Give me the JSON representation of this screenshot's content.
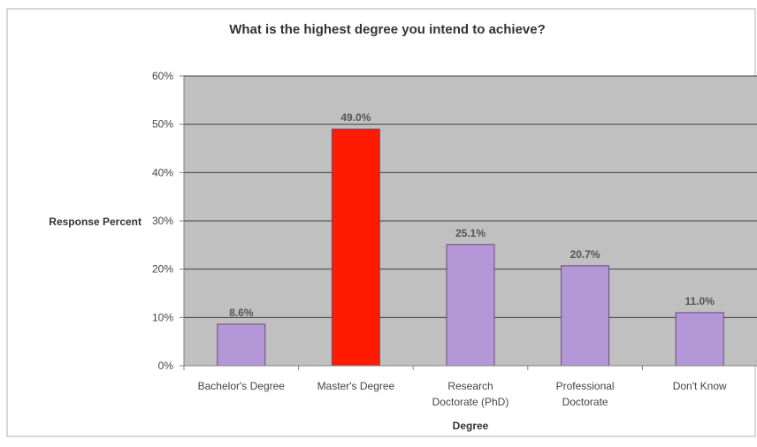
{
  "chart_data": {
    "type": "bar",
    "title": "What is the highest degree you intend to achieve?",
    "xlabel": "Degree",
    "ylabel": "Response Percent",
    "ylim": [
      0,
      60
    ],
    "yticks": [
      "0%",
      "10%",
      "20%",
      "30%",
      "40%",
      "50%",
      "60%"
    ],
    "grid": true,
    "categories": [
      [
        "Bachelor's Degree"
      ],
      [
        "Master's Degree"
      ],
      [
        "Research",
        "Doctorate (PhD)"
      ],
      [
        "Professional",
        "Doctorate"
      ],
      [
        "Don't Know"
      ]
    ],
    "values": [
      8.6,
      49.0,
      25.1,
      20.7,
      11.0
    ],
    "value_labels": [
      "8.6%",
      "49.0%",
      "25.1%",
      "20.7%",
      "11.0%"
    ],
    "colors": {
      "plot_background": "#c0c0c0",
      "bar_default": "#b497d6",
      "bar_highlight": "#ff1a00",
      "bar_border": "#6a4a7a"
    },
    "highlight_index": 1
  }
}
